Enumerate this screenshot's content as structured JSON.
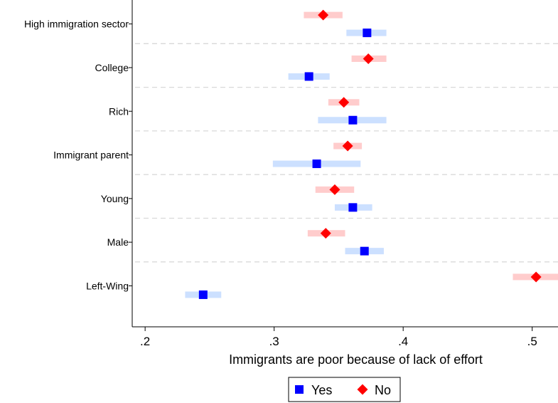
{
  "chart_data": {
    "type": "dot-ci",
    "title": "",
    "xlabel": "Immigrants are poor because of lack of effort",
    "ylabel": "",
    "xlim": [
      0.19,
      0.52
    ],
    "xticks": [
      0.2,
      0.3,
      0.4,
      0.5
    ],
    "xtick_labels": [
      ".2",
      ".3",
      ".4",
      ".5"
    ],
    "grid": "dashed separators between groups",
    "legend_position": "bottom-center",
    "categories": [
      "High immigration sector",
      "College",
      "Rich",
      "Immigrant parent",
      "Young",
      "Male",
      "Left-Wing"
    ],
    "series": [
      {
        "name": "Yes",
        "marker": "square",
        "color": "#0000ff",
        "ci_color": "#cce0ff",
        "values": [
          0.372,
          0.327,
          0.361,
          0.333,
          0.361,
          0.37,
          0.245
        ],
        "ci_low": [
          0.356,
          0.311,
          0.334,
          0.299,
          0.347,
          0.355,
          0.231
        ],
        "ci_high": [
          0.387,
          0.343,
          0.387,
          0.367,
          0.376,
          0.385,
          0.259
        ]
      },
      {
        "name": "No",
        "marker": "diamond",
        "color": "#ff0000",
        "ci_color": "#ffcccc",
        "values": [
          0.338,
          0.373,
          0.354,
          0.357,
          0.347,
          0.34,
          0.503
        ],
        "ci_low": [
          0.323,
          0.36,
          0.342,
          0.346,
          0.332,
          0.326,
          0.485
        ],
        "ci_high": [
          0.353,
          0.387,
          0.366,
          0.368,
          0.362,
          0.355,
          0.521
        ]
      }
    ]
  }
}
